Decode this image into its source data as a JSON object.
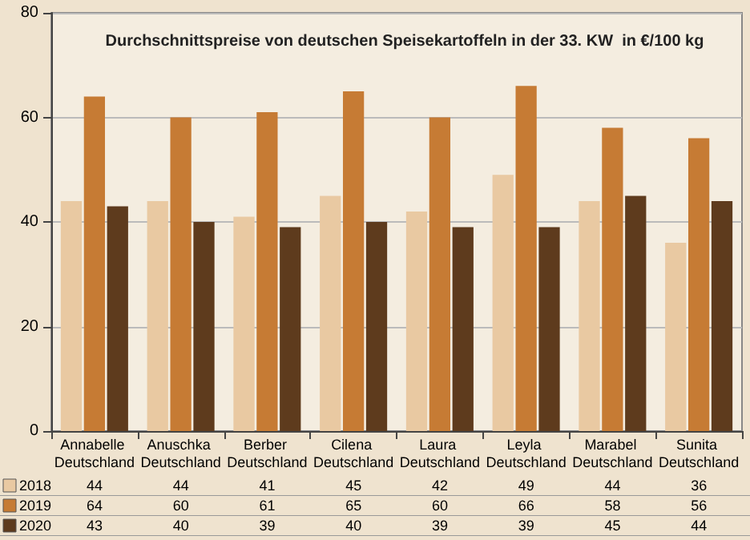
{
  "chart_data": {
    "type": "bar",
    "title": "Durchschnittspreise von deutschen Speisekartoffeln in der 33. KW  in €/100 kg",
    "categories": [
      "Annabelle Deutschland",
      "Anuschka Deutschland",
      "Berber Deutschland",
      "Cilena Deutschland",
      "Laura Deutschland",
      "Leyla Deutschland",
      "Marabel Deutschland",
      "Sunita Deutschland"
    ],
    "series": [
      {
        "name": "2018",
        "color": "#e9c9a2",
        "values": [
          44,
          44,
          41,
          45,
          42,
          49,
          44,
          36
        ]
      },
      {
        "name": "2019",
        "color": "#c67b34",
        "values": [
          64,
          60,
          61,
          65,
          60,
          66,
          58,
          56
        ]
      },
      {
        "name": "2020",
        "color": "#5e3b1d",
        "values": [
          43,
          40,
          39,
          40,
          39,
          39,
          45,
          44
        ]
      }
    ],
    "ylim": [
      0,
      80
    ],
    "yticks": [
      0,
      20,
      40,
      60,
      80
    ],
    "grid": "y",
    "legend": "bottom",
    "data_labels": true
  }
}
